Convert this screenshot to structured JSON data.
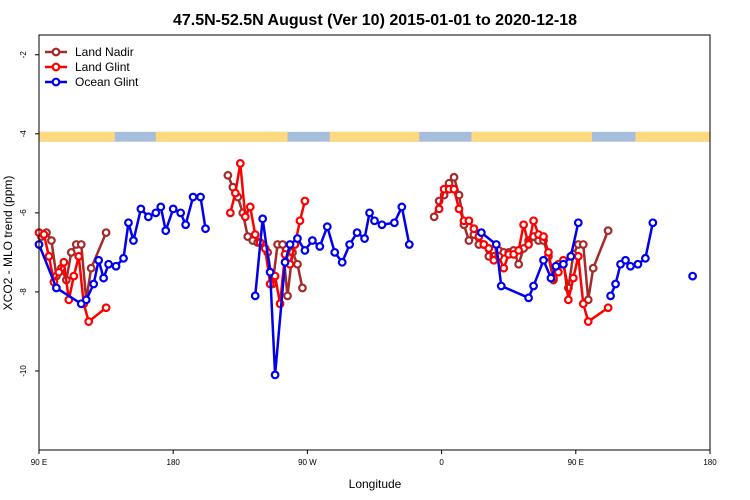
{
  "chart_data": {
    "type": "line",
    "title": "47.5N-52.5N August (Ver 10)   2015-01-01 to 2020-12-18",
    "xlabel": "Longitude",
    "ylabel": "XCO2 - MLO trend (ppm)",
    "xlim": [
      -90,
      180
    ],
    "ylim": [
      -12,
      -1.5
    ],
    "y_reversed": true,
    "x_ticks": [
      {
        "value": -90,
        "label": "90 E"
      },
      {
        "value": -36,
        "label": "180"
      },
      {
        "value": 18,
        "label": "90 W"
      },
      {
        "value": 72,
        "label": "0"
      },
      {
        "value": 126,
        "label": "90 E"
      },
      {
        "value": 180,
        "label": "180"
      }
    ],
    "y_ticks": [
      -2,
      -4,
      -6,
      -8,
      -10
    ],
    "grid": false,
    "legend_position": "top-left",
    "land_ocean_band": {
      "y_top": -3.95,
      "y_bottom": -4.2,
      "land_color": "#FFD97F",
      "ocean_color": "#A6BDDB",
      "land_ranges": [
        [
          -90,
          -59.5
        ],
        [
          -43,
          10
        ],
        [
          27,
          63
        ],
        [
          84,
          132.5
        ],
        [
          150,
          180
        ]
      ]
    },
    "series": [
      {
        "name": "Land Nadir",
        "color": "#A52A2A",
        "points": [
          [
            -89,
            -6.6
          ],
          [
            -87,
            -6.5
          ],
          [
            -85,
            -6.7
          ],
          [
            -83,
            -7.6
          ],
          [
            -81,
            -7.4
          ],
          [
            -79,
            -7.7
          ],
          [
            -77,
            -7.0
          ],
          [
            -75,
            -6.8
          ],
          [
            -73,
            -6.8
          ],
          [
            -71,
            -8.2
          ],
          [
            -69,
            -7.4
          ],
          [
            -63,
            -6.5
          ],
          [
            -14,
            -5.05
          ],
          [
            -12,
            -5.35
          ],
          [
            -10,
            -5.6
          ],
          [
            -8,
            -6.0
          ],
          [
            -6,
            -6.6
          ],
          [
            -4,
            -6.7
          ],
          [
            -2,
            -6.75
          ],
          [
            0,
            -6.8
          ],
          [
            2,
            -7.0
          ],
          [
            4,
            -7.8
          ],
          [
            6,
            -6.8
          ],
          [
            8,
            -6.8
          ],
          [
            10,
            -8.1
          ],
          [
            12,
            -7.0
          ],
          [
            14,
            -7.3
          ],
          [
            16,
            -7.9
          ],
          [
            69,
            -6.1
          ],
          [
            71,
            -5.7
          ],
          [
            73,
            -5.55
          ],
          [
            75,
            -5.25
          ],
          [
            77,
            -5.1
          ],
          [
            79,
            -5.55
          ],
          [
            81,
            -6.3
          ],
          [
            83,
            -6.7
          ],
          [
            85,
            -6.55
          ],
          [
            87,
            -6.8
          ],
          [
            89,
            -6.8
          ],
          [
            91,
            -7.1
          ],
          [
            93,
            -7.1
          ],
          [
            95,
            -6.95
          ],
          [
            97,
            -7.0
          ],
          [
            99,
            -7.0
          ],
          [
            101,
            -6.95
          ],
          [
            103,
            -7.3
          ],
          [
            105,
            -6.9
          ],
          [
            107,
            -6.7
          ],
          [
            109,
            -6.6
          ],
          [
            111,
            -6.7
          ],
          [
            113,
            -6.7
          ],
          [
            115,
            -7.1
          ],
          [
            117,
            -7.7
          ],
          [
            119,
            -7.3
          ],
          [
            121,
            -7.3
          ],
          [
            123,
            -7.9
          ],
          [
            125,
            -7.05
          ],
          [
            127,
            -6.8
          ],
          [
            129,
            -6.8
          ],
          [
            131,
            -8.2
          ],
          [
            133,
            -7.4
          ],
          [
            139,
            -6.45
          ]
        ]
      },
      {
        "name": "Land Glint",
        "color": "#FF0000",
        "points": [
          [
            -90,
            -6.5
          ],
          [
            -88,
            -6.55
          ],
          [
            -86,
            -7.1
          ],
          [
            -84,
            -7.75
          ],
          [
            -82,
            -7.5
          ],
          [
            -80,
            -7.25
          ],
          [
            -78,
            -8.2
          ],
          [
            -76,
            -7.6
          ],
          [
            -74,
            -7.1
          ],
          [
            -72,
            -8.3
          ],
          [
            -70,
            -8.75
          ],
          [
            -63,
            -8.4
          ],
          [
            -13,
            -6.0
          ],
          [
            -11,
            -5.5
          ],
          [
            -9,
            -4.75
          ],
          [
            -7,
            -6.1
          ],
          [
            -5,
            -5.85
          ],
          [
            -3,
            -6.55
          ],
          [
            -1,
            -6.75
          ],
          [
            1,
            -6.9
          ],
          [
            3,
            -7.8
          ],
          [
            5,
            -7.6
          ],
          [
            7,
            -8.3
          ],
          [
            9,
            -7.05
          ],
          [
            11,
            -7.3
          ],
          [
            13,
            -6.8
          ],
          [
            15,
            -6.2
          ],
          [
            17,
            -5.7
          ],
          [
            71,
            -5.9
          ],
          [
            73,
            -5.4
          ],
          [
            75,
            -5.4
          ],
          [
            77,
            -5.4
          ],
          [
            79,
            -5.9
          ],
          [
            81,
            -6.2
          ],
          [
            83,
            -6.2
          ],
          [
            85,
            -6.4
          ],
          [
            87,
            -6.6
          ],
          [
            89,
            -6.8
          ],
          [
            91,
            -6.9
          ],
          [
            93,
            -7.2
          ],
          [
            95,
            -7.1
          ],
          [
            97,
            -7.4
          ],
          [
            99,
            -7.05
          ],
          [
            101,
            -7.05
          ],
          [
            103,
            -6.95
          ],
          [
            105,
            -6.3
          ],
          [
            107,
            -6.8
          ],
          [
            109,
            -6.2
          ],
          [
            111,
            -6.55
          ],
          [
            113,
            -6.6
          ],
          [
            115,
            -7.0
          ],
          [
            117,
            -7.65
          ],
          [
            119,
            -7.5
          ],
          [
            121,
            -7.2
          ],
          [
            123,
            -8.2
          ],
          [
            125,
            -7.65
          ],
          [
            127,
            -7.1
          ],
          [
            129,
            -8.3
          ],
          [
            131,
            -8.75
          ],
          [
            139,
            -8.4
          ]
        ]
      },
      {
        "name": "Ocean Glint",
        "color": "#0000EE",
        "points": [
          [
            -90,
            -6.8
          ],
          [
            -83,
            -7.9
          ],
          [
            -73,
            -8.3
          ],
          [
            -71,
            -8.2
          ],
          [
            -68,
            -7.8
          ],
          [
            -66,
            -7.2
          ],
          [
            -64,
            -7.65
          ],
          [
            -62,
            -7.3
          ],
          [
            -59,
            -7.35
          ],
          [
            -56,
            -7.15
          ],
          [
            -54,
            -6.25
          ],
          [
            -52,
            -6.7
          ],
          [
            -49,
            -5.9
          ],
          [
            -46,
            -6.1
          ],
          [
            -43,
            -6.0
          ],
          [
            -41,
            -5.85
          ],
          [
            -39,
            -6.45
          ],
          [
            -36,
            -5.9
          ],
          [
            -33,
            -6.0
          ],
          [
            -31,
            -6.3
          ],
          [
            -28,
            -5.6
          ],
          [
            -25,
            -5.6
          ],
          [
            -23,
            -6.4
          ],
          [
            -3,
            -8.1
          ],
          [
            0,
            -6.15
          ],
          [
            3,
            -7.5
          ],
          [
            5,
            -10.1
          ],
          [
            9,
            -7.25
          ],
          [
            11,
            -6.8
          ],
          [
            14,
            -6.65
          ],
          [
            17,
            -6.95
          ],
          [
            20,
            -6.7
          ],
          [
            23,
            -6.85
          ],
          [
            26,
            -6.35
          ],
          [
            29,
            -7.0
          ],
          [
            32,
            -7.25
          ],
          [
            35,
            -6.8
          ],
          [
            38,
            -6.5
          ],
          [
            41,
            -6.65
          ],
          [
            43,
            -6.0
          ],
          [
            45,
            -6.2
          ],
          [
            48,
            -6.3
          ],
          [
            53,
            -6.25
          ],
          [
            56,
            -5.85
          ],
          [
            59,
            -6.8
          ],
          [
            88,
            -6.5
          ],
          [
            94,
            -6.8
          ],
          [
            96,
            -7.85
          ],
          [
            107,
            -8.15
          ],
          [
            109,
            -7.85
          ],
          [
            113,
            -7.2
          ],
          [
            116,
            -7.65
          ],
          [
            118,
            -7.35
          ],
          [
            121,
            -7.3
          ],
          [
            124,
            -7.1
          ],
          [
            127,
            -6.25
          ],
          [
            140,
            -8.1
          ],
          [
            142,
            -7.8
          ],
          [
            144,
            -7.3
          ],
          [
            146,
            -7.2
          ],
          [
            148,
            -7.35
          ],
          [
            151,
            -7.3
          ],
          [
            154,
            -7.15
          ],
          [
            157,
            -6.25
          ],
          [
            173,
            -7.6
          ]
        ]
      }
    ]
  }
}
